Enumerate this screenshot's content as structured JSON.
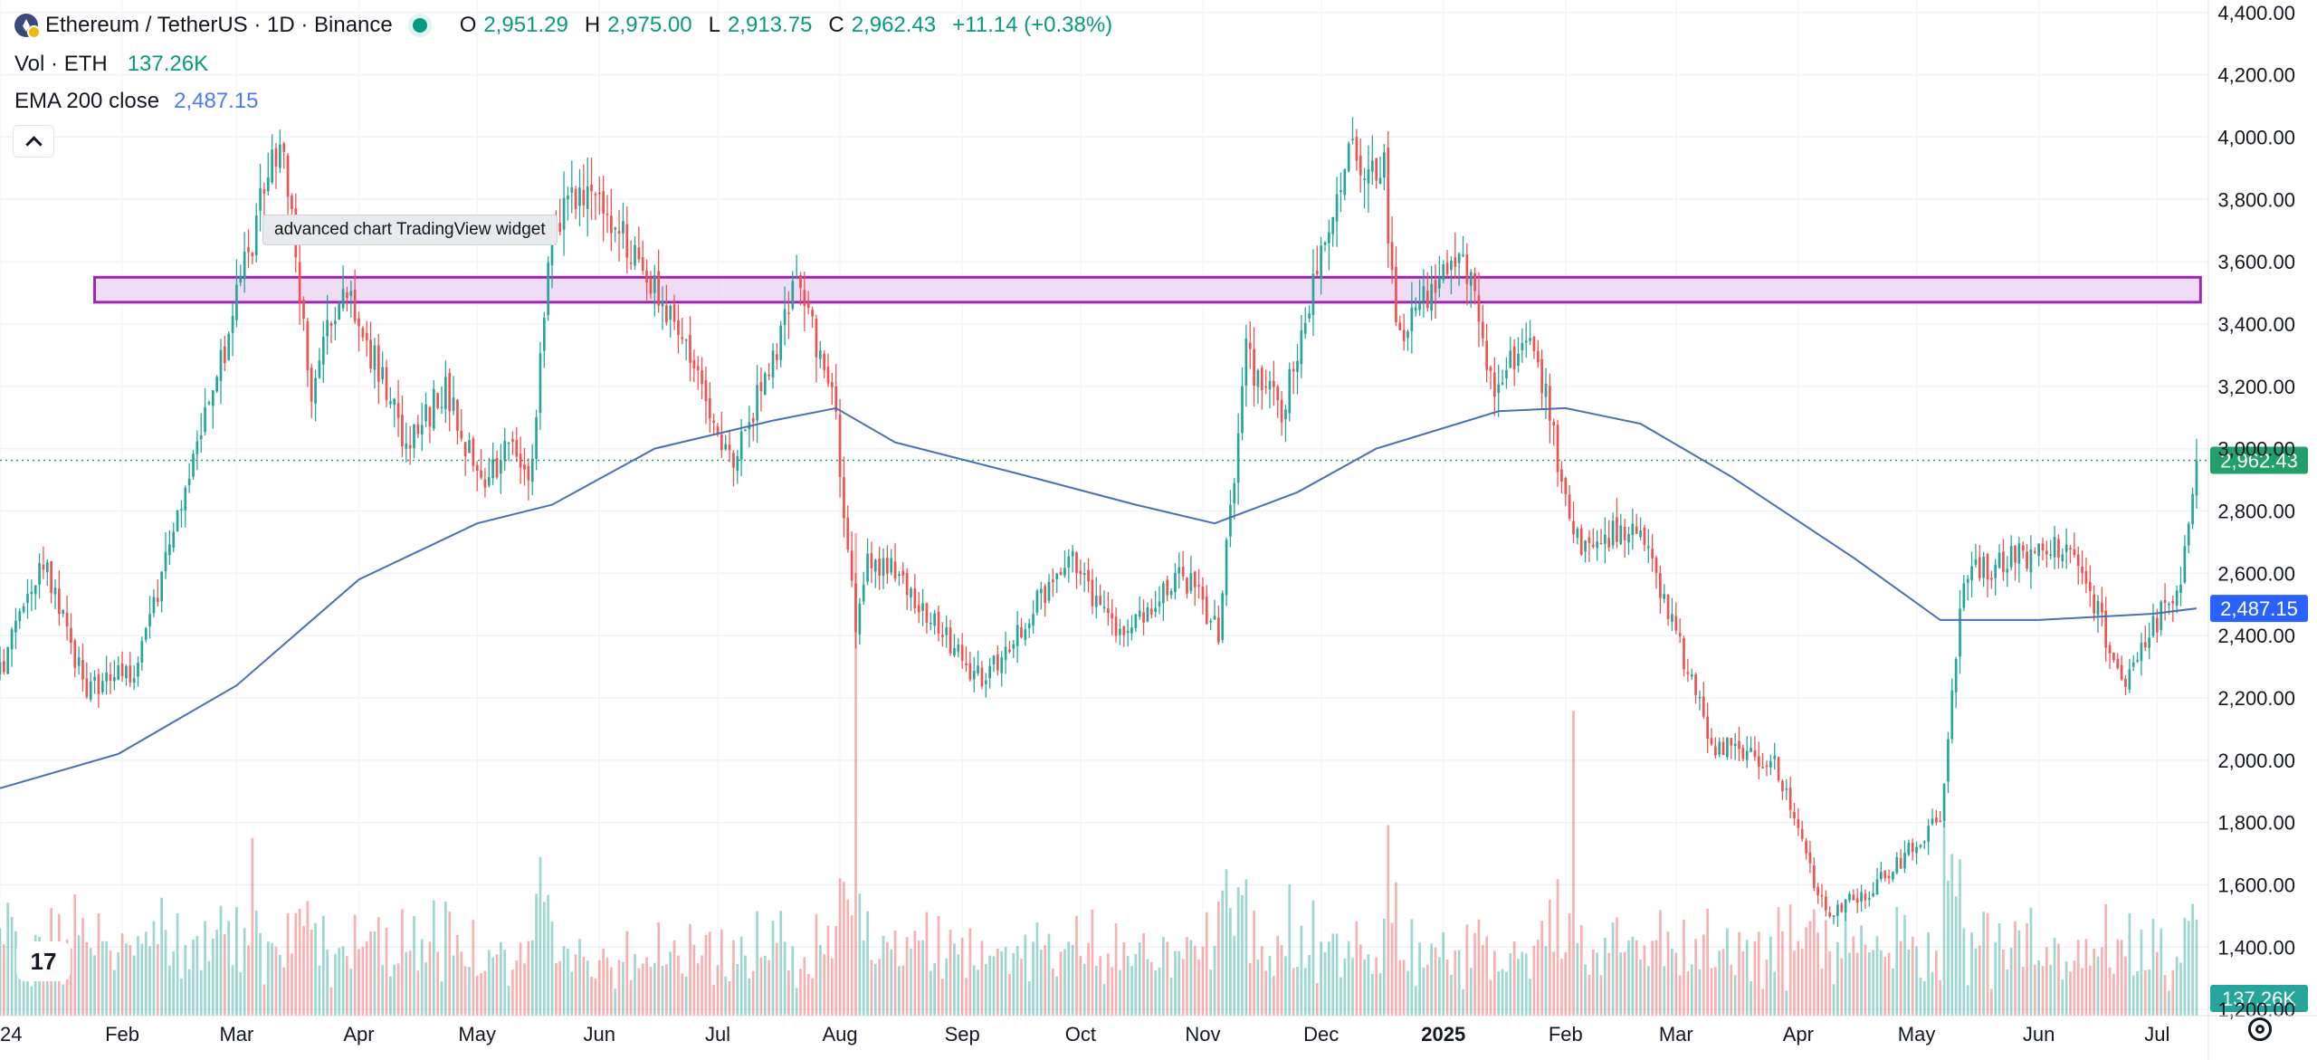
{
  "header": {
    "symbol_title": "Ethereum / TetherUS · 1D · Binance",
    "ohlc": [
      {
        "key": "O",
        "value": "2,951.29"
      },
      {
        "key": "H",
        "value": "2,975.00"
      },
      {
        "key": "L",
        "value": "2,913.75"
      },
      {
        "key": "C",
        "value": "2,962.43"
      }
    ],
    "change": "+11.14 (+0.38%)",
    "volume_label": "Vol · ETH",
    "volume_value": "137.26K",
    "ema_label": "EMA 200 close",
    "ema_value": "2,487.15"
  },
  "tooltip": "advanced chart TradingView widget",
  "logo_text": "17",
  "colors": {
    "up": "#26a69a",
    "down": "#ef5350",
    "ema": "#4a6fb5",
    "zone_fill": "#ecd3f3",
    "zone_border": "#9c27b0",
    "price_badge": "#22a06b",
    "ema_badge": "#2962ff"
  },
  "chart_data": {
    "type": "candlestick",
    "x_axis_labels": [
      "24",
      "Feb",
      "Mar",
      "Apr",
      "May",
      "Jun",
      "Jul",
      "Aug",
      "Sep",
      "Oct",
      "Nov",
      "Dec",
      "2025",
      "Feb",
      "Mar",
      "Apr",
      "May",
      "Jun",
      "Jul"
    ],
    "y_axis_labels": [
      "4,400.00",
      "4,200.00",
      "4,000.00",
      "3,800.00",
      "3,600.00",
      "3,400.00",
      "3,200.00",
      "3,000.00",
      "2,800.00",
      "2,600.00",
      "2,400.00",
      "2,200.00",
      "2,000.00",
      "1,800.00",
      "1,600.00",
      "1,400.00",
      "1,200.00"
    ],
    "ylim": [
      1180,
      4440
    ],
    "price_path": [
      [
        "2024-01-01",
        2280
      ],
      [
        "2024-01-12",
        2650
      ],
      [
        "2024-01-23",
        2220
      ],
      [
        "2024-02-05",
        2300
      ],
      [
        "2024-02-28",
        3380
      ],
      [
        "2024-03-12",
        4020
      ],
      [
        "2024-03-20",
        3200
      ],
      [
        "2024-03-28",
        3560
      ],
      [
        "2024-04-13",
        3000
      ],
      [
        "2024-04-23",
        3200
      ],
      [
        "2024-05-01",
        2900
      ],
      [
        "2024-05-10",
        3000
      ],
      [
        "2024-05-14",
        2880
      ],
      [
        "2024-05-20",
        3680
      ],
      [
        "2024-05-27",
        3850
      ],
      [
        "2024-06-07",
        3700
      ],
      [
        "2024-06-24",
        3300
      ],
      [
        "2024-07-05",
        2950
      ],
      [
        "2024-07-21",
        3520
      ],
      [
        "2024-07-30",
        3200
      ],
      [
        "2024-08-05",
        2450
      ],
      [
        "2024-08-08",
        2650
      ],
      [
        "2024-08-15",
        2600
      ],
      [
        "2024-09-06",
        2250
      ],
      [
        "2024-09-28",
        2650
      ],
      [
        "2024-10-10",
        2400
      ],
      [
        "2024-10-27",
        2600
      ],
      [
        "2024-11-05",
        2420
      ],
      [
        "2024-11-12",
        3300
      ],
      [
        "2024-11-21",
        3100
      ],
      [
        "2024-12-08",
        3950
      ],
      [
        "2024-12-17",
        3900
      ],
      [
        "2024-12-20",
        3350
      ],
      [
        "2025-01-06",
        3650
      ],
      [
        "2025-01-13",
        3200
      ],
      [
        "2025-01-24",
        3350
      ],
      [
        "2025-02-03",
        2700
      ],
      [
        "2025-02-20",
        2750
      ],
      [
        "2025-03-10",
        2050
      ],
      [
        "2025-03-26",
        2000
      ],
      [
        "2025-04-08",
        1500
      ],
      [
        "2025-04-21",
        1600
      ],
      [
        "2025-05-07",
        1810
      ],
      [
        "2025-05-13",
        2600
      ],
      [
        "2025-06-10",
        2700
      ],
      [
        "2025-06-22",
        2250
      ],
      [
        "2025-07-01",
        2450
      ],
      [
        "2025-07-07",
        2550
      ],
      [
        "2025-07-11",
        2962.43
      ]
    ],
    "ema_200": {
      "name": "EMA 200 close",
      "points": [
        [
          "2024-01-01",
          1910
        ],
        [
          "2024-01-31",
          2020
        ],
        [
          "2024-03-01",
          2240
        ],
        [
          "2024-04-01",
          2580
        ],
        [
          "2024-05-01",
          2760
        ],
        [
          "2024-05-20",
          2820
        ],
        [
          "2024-06-15",
          3000
        ],
        [
          "2024-07-15",
          3090
        ],
        [
          "2024-07-31",
          3130
        ],
        [
          "2024-08-15",
          3020
        ],
        [
          "2024-09-15",
          2920
        ],
        [
          "2024-10-15",
          2820
        ],
        [
          "2024-11-04",
          2760
        ],
        [
          "2024-11-25",
          2860
        ],
        [
          "2024-12-15",
          3000
        ],
        [
          "2025-01-15",
          3120
        ],
        [
          "2025-02-01",
          3130
        ],
        [
          "2025-02-20",
          3080
        ],
        [
          "2025-03-15",
          2910
        ],
        [
          "2025-04-15",
          2650
        ],
        [
          "2025-05-07",
          2450
        ],
        [
          "2025-06-01",
          2450
        ],
        [
          "2025-06-30",
          2470
        ],
        [
          "2025-07-11",
          2487.15
        ]
      ]
    },
    "resistance_zone": {
      "from": "2024-01-25",
      "to": "2025-07-12",
      "low": 3470,
      "high": 3550
    },
    "last_price": "2,962.43",
    "ema_last": "2,487.15",
    "volume_last": "137.26K",
    "volume_spikes": [
      [
        "2024-08-05",
        0.95
      ],
      [
        "2025-02-03",
        0.6
      ],
      [
        "2024-03-05",
        0.35
      ],
      [
        "2025-05-08",
        0.38
      ]
    ]
  }
}
